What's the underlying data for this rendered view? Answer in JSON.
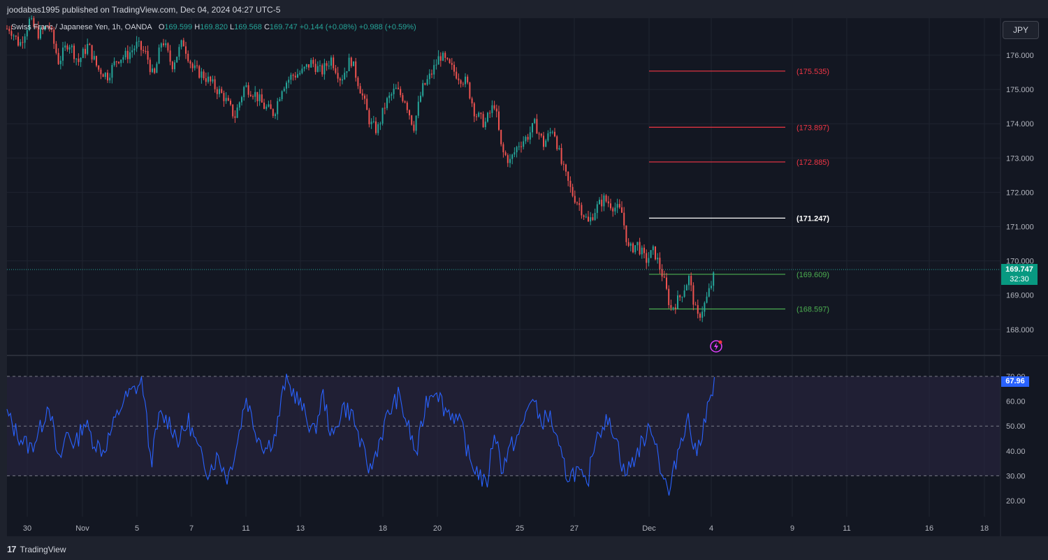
{
  "header": {
    "published_by": "joodabas1995 published on TradingView.com, Dec 04, 2024 04:27 UTC-5"
  },
  "legend": {
    "symbol": "Swiss Franc / Japanese Yen, 1h, OANDA",
    "o_label": "O",
    "o_value": "169.599",
    "h_label": "H",
    "h_value": "169.820",
    "l_label": "L",
    "l_value": "169.568",
    "c_label": "C",
    "c_value": "169.747",
    "change": "+0.144 (+0.08%)",
    "change2": "+0.988 (+0.59%)"
  },
  "currency_button": "JPY",
  "current_price": {
    "value": "169.747",
    "countdown": "32:30"
  },
  "rsi_current": "67.96",
  "colors": {
    "background": "#131722",
    "up": "#26a69a",
    "down": "#ef5350",
    "resistance": "#f23645",
    "pivot": "#ffffff",
    "support": "#4caf50",
    "rsi_line": "#2962ff",
    "rsi_band": "#2a2541"
  },
  "price_axis": {
    "labels": [
      "176.000",
      "175.000",
      "174.000",
      "173.000",
      "172.000",
      "171.000",
      "170.000",
      "169.000",
      "168.000"
    ]
  },
  "rsi_axis": {
    "labels": [
      "70.00",
      "60.00",
      "50.00",
      "40.00",
      "30.00",
      "20.00"
    ]
  },
  "time_axis": {
    "labels": [
      "30",
      "Nov",
      "5",
      "7",
      "11",
      "13",
      "18",
      "20",
      "25",
      "27",
      "Dec",
      "4",
      "9",
      "11",
      "16",
      "18"
    ]
  },
  "levels": [
    {
      "label": "(175.535)",
      "value": 175.535,
      "kind": "resistance"
    },
    {
      "label": "(173.897)",
      "value": 173.897,
      "kind": "resistance"
    },
    {
      "label": "(172.885)",
      "value": 172.885,
      "kind": "resistance"
    },
    {
      "label": "(171.247)",
      "value": 171.247,
      "kind": "pivot"
    },
    {
      "label": "(169.609)",
      "value": 169.609,
      "kind": "support"
    },
    {
      "label": "(168.597)",
      "value": 168.597,
      "kind": "support"
    }
  ],
  "price_path": [
    [
      0,
      176.7
    ],
    [
      14,
      176.8
    ],
    [
      28,
      176.3
    ],
    [
      42,
      177.0
    ],
    [
      56,
      176.6
    ],
    [
      70,
      176.9
    ],
    [
      84,
      175.8
    ],
    [
      98,
      176.4
    ],
    [
      112,
      175.8
    ],
    [
      126,
      176.3
    ],
    [
      140,
      175.6
    ],
    [
      154,
      175.4
    ],
    [
      168,
      175.9
    ],
    [
      182,
      176.0
    ],
    [
      196,
      176.3
    ],
    [
      210,
      176.0
    ],
    [
      220,
      175.3
    ],
    [
      232,
      176.5
    ],
    [
      246,
      175.7
    ],
    [
      262,
      176.4
    ],
    [
      276,
      175.6
    ],
    [
      292,
      175.4
    ],
    [
      306,
      175.1
    ],
    [
      320,
      174.8
    ],
    [
      336,
      174.2
    ],
    [
      350,
      175.1
    ],
    [
      364,
      174.9
    ],
    [
      378,
      174.5
    ],
    [
      392,
      174.3
    ],
    [
      404,
      175.1
    ],
    [
      418,
      175.4
    ],
    [
      432,
      175.5
    ],
    [
      446,
      175.8
    ],
    [
      460,
      175.5
    ],
    [
      474,
      175.9
    ],
    [
      488,
      175.3
    ],
    [
      502,
      175.9
    ],
    [
      516,
      175.0
    ],
    [
      530,
      174.0
    ],
    [
      540,
      173.8
    ],
    [
      552,
      174.6
    ],
    [
      566,
      175.0
    ],
    [
      580,
      174.7
    ],
    [
      592,
      173.9
    ],
    [
      604,
      175.0
    ],
    [
      616,
      175.4
    ],
    [
      630,
      176.0
    ],
    [
      642,
      175.7
    ],
    [
      656,
      175.4
    ],
    [
      668,
      175.2
    ],
    [
      680,
      174.3
    ],
    [
      694,
      174.0
    ],
    [
      708,
      174.6
    ],
    [
      718,
      173.2
    ],
    [
      730,
      172.9
    ],
    [
      742,
      173.4
    ],
    [
      754,
      173.6
    ],
    [
      766,
      174.0
    ],
    [
      778,
      173.4
    ],
    [
      792,
      173.9
    ],
    [
      804,
      172.8
    ],
    [
      818,
      172.0
    ],
    [
      830,
      171.6
    ],
    [
      842,
      171.1
    ],
    [
      852,
      171.5
    ],
    [
      864,
      171.8
    ],
    [
      878,
      171.6
    ],
    [
      890,
      171.4
    ],
    [
      900,
      170.3
    ],
    [
      912,
      170.5
    ],
    [
      924,
      170.0
    ],
    [
      936,
      170.3
    ],
    [
      948,
      169.6
    ],
    [
      960,
      168.6
    ],
    [
      972,
      168.9
    ],
    [
      986,
      169.5
    ],
    [
      998,
      168.3
    ],
    [
      1010,
      168.8
    ],
    [
      1024,
      169.7
    ]
  ],
  "rsi_path": [
    [
      10,
      55
    ],
    [
      20,
      49
    ],
    [
      30,
      45
    ],
    [
      44,
      41
    ],
    [
      58,
      49
    ],
    [
      70,
      60
    ],
    [
      84,
      34
    ],
    [
      96,
      48
    ],
    [
      108,
      42
    ],
    [
      120,
      52
    ],
    [
      134,
      44
    ],
    [
      148,
      40
    ],
    [
      162,
      50
    ],
    [
      176,
      60
    ],
    [
      190,
      64
    ],
    [
      204,
      68
    ],
    [
      216,
      35
    ],
    [
      228,
      54
    ],
    [
      242,
      52
    ],
    [
      256,
      44
    ],
    [
      270,
      52
    ],
    [
      284,
      40
    ],
    [
      298,
      32
    ],
    [
      312,
      38
    ],
    [
      326,
      29
    ],
    [
      340,
      44
    ],
    [
      352,
      62
    ],
    [
      366,
      48
    ],
    [
      380,
      41
    ],
    [
      394,
      46
    ],
    [
      408,
      68
    ],
    [
      422,
      63
    ],
    [
      436,
      55
    ],
    [
      450,
      47
    ],
    [
      462,
      63
    ],
    [
      476,
      44
    ],
    [
      490,
      58
    ],
    [
      504,
      55
    ],
    [
      518,
      41
    ],
    [
      530,
      32
    ],
    [
      544,
      45
    ],
    [
      556,
      55
    ],
    [
      570,
      62
    ],
    [
      584,
      50
    ],
    [
      596,
      38
    ],
    [
      610,
      60
    ],
    [
      624,
      66
    ],
    [
      636,
      57
    ],
    [
      648,
      55
    ],
    [
      662,
      49
    ],
    [
      672,
      36
    ],
    [
      686,
      31
    ],
    [
      696,
      25
    ],
    [
      708,
      49
    ],
    [
      718,
      33
    ],
    [
      732,
      42
    ],
    [
      746,
      48
    ],
    [
      760,
      62
    ],
    [
      774,
      52
    ],
    [
      788,
      54
    ],
    [
      800,
      40
    ],
    [
      812,
      30
    ],
    [
      826,
      32
    ],
    [
      840,
      25
    ],
    [
      852,
      46
    ],
    [
      866,
      52
    ],
    [
      880,
      48
    ],
    [
      894,
      30
    ],
    [
      908,
      37
    ],
    [
      920,
      44
    ],
    [
      934,
      50
    ],
    [
      946,
      33
    ],
    [
      958,
      22
    ],
    [
      970,
      40
    ],
    [
      984,
      54
    ],
    [
      996,
      38
    ],
    [
      1010,
      54
    ],
    [
      1024,
      68
    ]
  ]
}
